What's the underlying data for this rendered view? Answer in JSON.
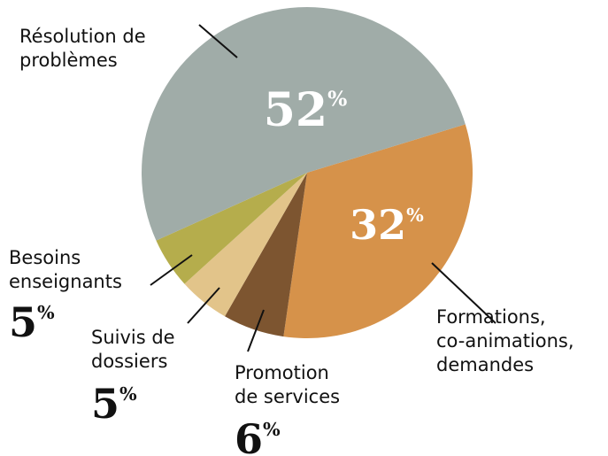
{
  "chart_data": {
    "type": "pie",
    "categories": [
      "Formations,\nco-animations,\ndemandes",
      "Promotion\nde services",
      "Suivis de\ndossiers",
      "Besoins\nenseignants",
      "Résolution de\nproblèmes"
    ],
    "values": [
      32,
      6,
      5,
      5,
      52
    ],
    "value_labels": [
      "32%",
      "6%",
      "5%",
      "5%",
      "52%"
    ],
    "colors": [
      "#d6924a",
      "#7d5530",
      "#e2c48a",
      "#b5ad4c",
      "#a0aca8"
    ]
  }
}
